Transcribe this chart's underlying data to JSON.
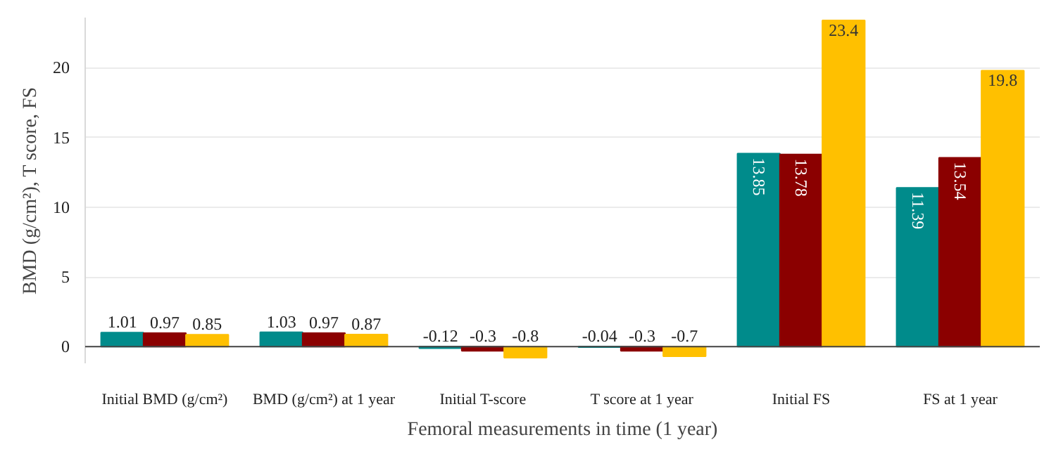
{
  "chart_data": {
    "type": "bar",
    "xlabel": "Femoral measurements in time (1 year)",
    "ylabel": "BMD (g/cm²), T score, FS",
    "categories": [
      "Initial BMD (g/cm²)",
      "BMD (g/cm²) at 1 year",
      "Initial T-score",
      "T score at 1 year",
      "Initial FS",
      "FS at 1 year"
    ],
    "series": [
      {
        "color": "#008b8b",
        "values": [
          1.01,
          1.03,
          -0.12,
          -0.04,
          13.85,
          11.39
        ]
      },
      {
        "color": "#8b0000",
        "values": [
          0.97,
          0.97,
          -0.3,
          -0.3,
          13.78,
          13.54
        ]
      },
      {
        "color": "#ffc000",
        "values": [
          0.85,
          0.87,
          -0.8,
          -0.7,
          23.4,
          19.8
        ]
      }
    ],
    "ylim": [
      -1.2,
      23.6
    ],
    "yticks": [
      0,
      5,
      10,
      15,
      20
    ],
    "grid": "y",
    "data_labels": true
  }
}
